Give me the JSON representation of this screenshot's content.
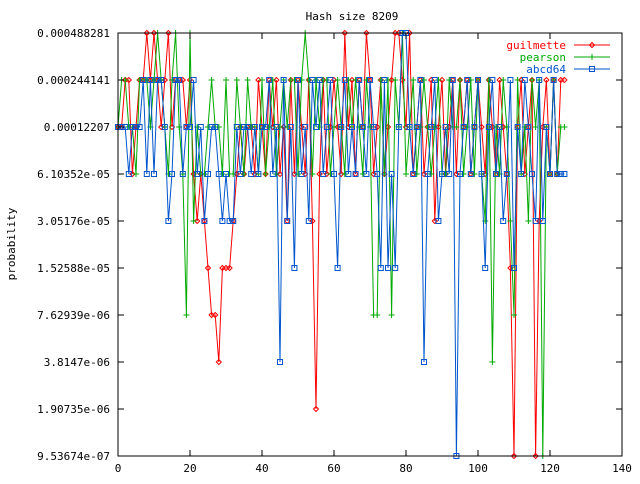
{
  "chart_data": {
    "type": "line",
    "title": "Hash size 8209",
    "xlabel": "",
    "ylabel": "probability",
    "xlim": [
      0,
      140
    ],
    "x_ticks": [
      0,
      20,
      40,
      60,
      80,
      100,
      120,
      140
    ],
    "y_scale": "log2",
    "y_tick_values": [
      9.53674e-07,
      1.90735e-06,
      3.8147e-06,
      7.62939e-06,
      1.52588e-05,
      3.05176e-05,
      6.10352e-05,
      0.00012207,
      0.000244141,
      0.000488281
    ],
    "y_tick_labels": [
      "9.53674e-07",
      "1.90735e-06",
      "3.8147e-06",
      "7.62939e-06",
      "1.52588e-05",
      "3.05176e-05",
      "6.10352e-05",
      "0.00012207",
      "0.000244141",
      "0.000488281"
    ],
    "ylim": [
      9.53674e-07,
      0.000488281
    ],
    "grid": false,
    "legend_position": "top-right",
    "series": [
      {
        "name": "guilmette",
        "color": "#ff0000",
        "marker": "diamond",
        "exp": [
          -13,
          -13,
          -12,
          -12,
          -14,
          -13,
          -12,
          -12,
          -11,
          -12,
          -11,
          -12,
          -13,
          -12,
          -11,
          -13,
          -12,
          -12,
          -12,
          -13,
          -12,
          -14,
          -15,
          -14,
          -15,
          -16,
          -17,
          -17,
          -18,
          -16,
          -16,
          -16,
          -15,
          -14,
          -13,
          -14,
          -13,
          -13,
          -14,
          -12,
          -13,
          -14,
          -12,
          -13,
          -12,
          -14,
          -13,
          -15,
          -12,
          -14,
          -12,
          -13,
          -14,
          -12,
          -15,
          -19,
          -14,
          -12,
          -14,
          -13,
          -12,
          -13,
          -14,
          -11,
          -13,
          -12,
          -14,
          -12,
          -13,
          -11,
          -12,
          -14,
          -13,
          -12,
          -14,
          -13,
          -12,
          -11,
          -11,
          -12,
          -13,
          -11,
          -14,
          -13,
          -12,
          -14,
          -13,
          -12,
          -15,
          -13,
          -12,
          -14,
          -13,
          -12,
          -14,
          -12,
          -13,
          -12,
          -14,
          -13,
          -12,
          -13,
          -14,
          -12,
          -13,
          -14,
          -12,
          -13,
          -14,
          -16,
          -20,
          -13,
          -12,
          -14,
          -13,
          -12,
          -20,
          -15,
          -13,
          -12,
          -14,
          -12,
          -14,
          -12,
          -12
        ]
      },
      {
        "name": "pearson",
        "color": "#00aa00",
        "marker": "plus",
        "exp": [
          -13,
          -12,
          -12,
          -13,
          -13,
          -14,
          -12,
          -12,
          -12,
          -13,
          -12,
          -11,
          -12,
          -13,
          -14,
          -12,
          -11,
          -13,
          -14,
          -17,
          -11,
          -15,
          -13,
          -14,
          -14,
          -13,
          -12,
          -13,
          -13,
          -14,
          -12,
          -14,
          -14,
          -12,
          -13,
          -14,
          -12,
          -13,
          -13,
          -14,
          -12,
          -14,
          -13,
          -12,
          -14,
          -13,
          -12,
          -13,
          -12,
          -12,
          -14,
          -12,
          -11,
          -12,
          -14,
          -12,
          -13,
          -12,
          -12,
          -14,
          -13,
          -12,
          -13,
          -14,
          -12,
          -13,
          -12,
          -13,
          -14,
          -12,
          -13,
          -17,
          -17,
          -12,
          -14,
          -12,
          -17,
          -12,
          -13,
          -11,
          -14,
          -13,
          -12,
          -14,
          -13,
          -12,
          -13,
          -14,
          -13,
          -12,
          -14,
          -14,
          -12,
          -13,
          -13,
          -12,
          -14,
          -13,
          -12,
          -14,
          -12,
          -14,
          -15,
          -12,
          -18,
          -13,
          -14,
          -12,
          -13,
          -15,
          -17,
          -12,
          -14,
          -13,
          -15,
          -12,
          -13,
          -12,
          -20,
          -13,
          -14,
          -12,
          -14,
          -13,
          -13
        ]
      },
      {
        "name": "abcd64",
        "color": "#0055cc",
        "marker": "square",
        "exp": [
          -13,
          -13,
          -13,
          -14,
          -13,
          -13,
          -13,
          -12,
          -14,
          -12,
          -14,
          -12,
          -12,
          -13,
          -15,
          -14,
          -12,
          -12,
          -14,
          -13,
          -13,
          -12,
          -14,
          -13,
          -15,
          -14,
          -13,
          -13,
          -14,
          -15,
          -14,
          -15,
          -15,
          -13,
          -14,
          -13,
          -13,
          -14,
          -13,
          -14,
          -13,
          -13,
          -12,
          -14,
          -13,
          -18,
          -12,
          -15,
          -13,
          -16,
          -12,
          -14,
          -13,
          -15,
          -12,
          -13,
          -12,
          -14,
          -13,
          -12,
          -14,
          -16,
          -13,
          -12,
          -14,
          -13,
          -14,
          -12,
          -13,
          -14,
          -12,
          -13,
          -14,
          -16,
          -12,
          -16,
          -14,
          -16,
          -13,
          -11,
          -11,
          -13,
          -14,
          -13,
          -12,
          -18,
          -14,
          -13,
          -12,
          -15,
          -14,
          -13,
          -14,
          -12,
          -20,
          -14,
          -13,
          -12,
          -14,
          -13,
          -12,
          -14,
          -16,
          -13,
          -12,
          -14,
          -13,
          -15,
          -14,
          -12,
          -16,
          -13,
          -14,
          -12,
          -13,
          -14,
          -15,
          -12,
          -15,
          -13,
          -14,
          -12,
          -14,
          -14,
          -14
        ]
      }
    ]
  }
}
